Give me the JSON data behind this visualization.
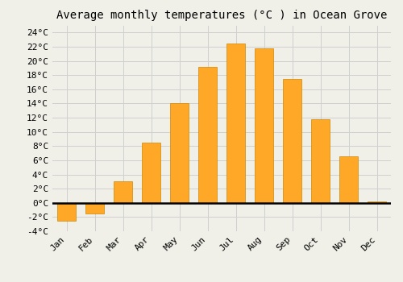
{
  "title": "Average monthly temperatures (°C ) in Ocean Grove",
  "months": [
    "Jan",
    "Feb",
    "Mar",
    "Apr",
    "May",
    "Jun",
    "Jul",
    "Aug",
    "Sep",
    "Oct",
    "Nov",
    "Dec"
  ],
  "values": [
    -2.5,
    -1.5,
    3.0,
    8.5,
    14.0,
    19.2,
    22.5,
    21.8,
    17.5,
    11.8,
    6.5,
    0.2
  ],
  "bar_color": "#FFA726",
  "edge_color": "#CC8800",
  "ylim": [
    -4,
    25
  ],
  "yticks": [
    -4,
    -2,
    0,
    2,
    4,
    6,
    8,
    10,
    12,
    14,
    16,
    18,
    20,
    22,
    24
  ],
  "background_color": "#f0f0e8",
  "grid_color": "#d0d0d0",
  "title_fontsize": 10,
  "tick_fontsize": 8
}
